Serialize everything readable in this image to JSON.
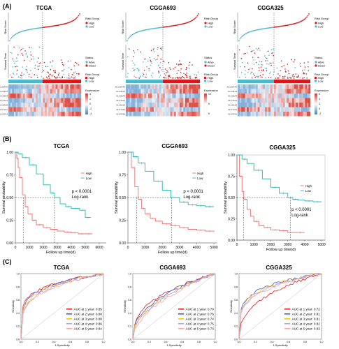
{
  "panels": {
    "A": "(A)",
    "B": "(B)",
    "C": "(C)"
  },
  "cohorts": [
    "TCGA",
    "CGGA693",
    "CGGA325"
  ],
  "colors": {
    "high": "#d7191c",
    "low": "#4fb8cf",
    "heat_high": "#d63228",
    "heat_low": "#3a7fc4",
    "km_high": "#f26b6b",
    "km_low": "#1fb5b5",
    "roc": [
      "#e41a1c",
      "#3a57d6",
      "#f5c518",
      "#b7a0e0",
      "#f4a6a6"
    ]
  },
  "risk_panel": {
    "risk_ylabel": "Risk Score",
    "surv_ylabel": "Survival Time",
    "legend_risk_title": "Risk Group",
    "legend_risk_items": [
      "High",
      "Low"
    ],
    "legend_status_title": "Status",
    "legend_status_items": [
      "Alive",
      "Dead"
    ],
    "legend_expr_title": "Expression",
    "genes": [
      "SLC25A48",
      "SLC43A3",
      "SLC29A4",
      "SLC11A1",
      "SLC6A18",
      "SLC7A11",
      "SLC47A1"
    ],
    "expr_ticks": [
      [
        "4",
        "2",
        "0",
        "-2",
        "-4"
      ],
      [
        "10",
        "5",
        "0"
      ],
      [
        "6",
        "4",
        "2",
        "0",
        "-2"
      ]
    ]
  },
  "km": {
    "ylabel": "Survival probability",
    "xlabel": "Follow up time(d)",
    "legend": [
      "High",
      "Low"
    ],
    "pvals": [
      "p < 0.0001",
      "p < 0.0001",
      "p < 0.0001"
    ],
    "test_label": "Log-rank",
    "yticks": [
      "0.00",
      "0.25",
      "0.50",
      "0.75",
      "1.00"
    ],
    "xticks": [
      [
        "0",
        "1000",
        "2000",
        "3000",
        "4000",
        "5000",
        "6000"
      ],
      [
        "0",
        "1000",
        "2000",
        "3000",
        "4000",
        "5000"
      ],
      [
        "0",
        "1000",
        "2000",
        "3000",
        "4000",
        "5000"
      ]
    ]
  },
  "roc": {
    "xlabel": "1-Specificity",
    "ylabel": "Sensitivity",
    "labels": [
      [
        "AUC at 1 year: 0.85",
        "AUC at 2 year: 0.88",
        "AUC at 3 year: 0.88",
        "AUC at 4 year: 0.86",
        "AUC at 5 year: 0.84"
      ],
      [
        "AUC at 1 year: 0.70",
        "AUC at 2 year: 0.76",
        "AUC at 3 year: 0.74",
        "AUC at 4 year: 0.75",
        "AUC at 5 year: 0.73"
      ],
      [
        "AUC at 1 year: 0.72",
        "AUC at 2 year: 0.81",
        "AUC at 3 year: 0.81",
        "AUC at 4 year: 0.82",
        "AUC at 5 year: 0.83"
      ]
    ],
    "ticks": [
      "0.0",
      "0.2",
      "0.4",
      "0.6",
      "0.8",
      "1.0"
    ]
  },
  "chart_data": [
    {
      "type": "line",
      "title": "TCGA",
      "xlabel": "Follow up time(d)",
      "ylabel": "Survival probability",
      "xlim": [
        0,
        6500
      ],
      "ylim": [
        0,
        1
      ],
      "series": [
        {
          "name": "High",
          "x": [
            0,
            100,
            200,
            300,
            500,
            700,
            900,
            1200,
            1500,
            2000,
            2500,
            3000,
            3500,
            4000,
            4500,
            5000,
            5500
          ],
          "y": [
            1.0,
            0.93,
            0.83,
            0.72,
            0.53,
            0.4,
            0.32,
            0.25,
            0.2,
            0.17,
            0.15,
            0.13,
            0.12,
            0.11,
            0.1,
            0.1,
            0.1
          ]
        },
        {
          "name": "Low",
          "x": [
            0,
            200,
            500,
            1000,
            1500,
            2000,
            2500,
            2800,
            3200,
            3600,
            4000,
            4600,
            5000,
            5400
          ],
          "y": [
            1.0,
            0.98,
            0.94,
            0.86,
            0.76,
            0.64,
            0.55,
            0.5,
            0.43,
            0.4,
            0.38,
            0.36,
            0.28,
            0.28
          ]
        }
      ]
    },
    {
      "type": "line",
      "title": "CGGA693",
      "xlabel": "Follow up time(d)",
      "ylabel": "Survival probability",
      "xlim": [
        0,
        5200
      ],
      "ylim": [
        0,
        1
      ],
      "series": [
        {
          "name": "High",
          "x": [
            0,
            200,
            400,
            600,
            800,
            1000,
            1300,
            1600,
            2000,
            2500,
            3000,
            3500,
            4000,
            4500,
            5000
          ],
          "y": [
            1.0,
            0.83,
            0.62,
            0.48,
            0.38,
            0.32,
            0.27,
            0.24,
            0.21,
            0.19,
            0.17,
            0.15,
            0.14,
            0.13,
            0.12
          ]
        },
        {
          "name": "Low",
          "x": [
            0,
            300,
            600,
            1000,
            1500,
            2000,
            2500,
            3000,
            3500,
            4000,
            4500,
            5000
          ],
          "y": [
            1.0,
            0.95,
            0.88,
            0.79,
            0.68,
            0.58,
            0.5,
            0.45,
            0.42,
            0.41,
            0.4,
            0.4
          ]
        }
      ]
    },
    {
      "type": "line",
      "title": "CGGA325",
      "xlabel": "Follow up time(d)",
      "ylabel": "Survival probability",
      "xlim": [
        0,
        5200
      ],
      "ylim": [
        0,
        1
      ],
      "series": [
        {
          "name": "High",
          "x": [
            0,
            150,
            300,
            400,
            600,
            800,
            1000,
            1300,
            1600,
            2000,
            2500,
            3000,
            3500,
            4000
          ],
          "y": [
            1.0,
            0.75,
            0.57,
            0.48,
            0.36,
            0.28,
            0.22,
            0.17,
            0.15,
            0.12,
            0.11,
            0.09,
            0.09,
            0.09
          ]
        },
        {
          "name": "Low",
          "x": [
            0,
            300,
            600,
            1000,
            1500,
            2000,
            2500,
            3000,
            3300,
            3600,
            4000,
            4500,
            5000
          ],
          "y": [
            1.0,
            0.95,
            0.9,
            0.82,
            0.72,
            0.62,
            0.55,
            0.5,
            0.48,
            0.47,
            0.46,
            0.45,
            0.45
          ]
        }
      ]
    }
  ]
}
